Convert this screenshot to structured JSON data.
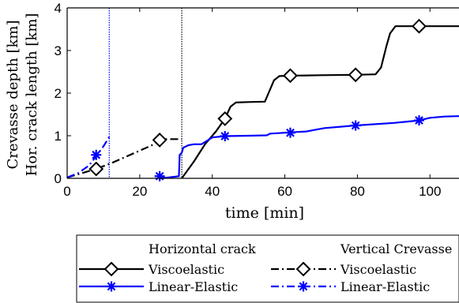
{
  "chart_data": {
    "type": "line",
    "xlabel": "time [min]",
    "ylabel_lines": [
      "Crevasse depth [km]",
      "Hor. crack length [km]"
    ],
    "xlim": [
      0,
      108
    ],
    "ylim": [
      0,
      4
    ],
    "xticks": [
      0,
      20,
      40,
      60,
      80,
      100
    ],
    "yticks": [
      0,
      1,
      2,
      3,
      4
    ],
    "grid": false,
    "vlines": [
      {
        "x": 11.6,
        "color": "#0000ff",
        "style": "dotted"
      },
      {
        "x": 31.6,
        "color": "#000000",
        "style": "dotted"
      }
    ],
    "series": [
      {
        "color": "#000000",
        "dash": "solid",
        "marker": "diamond",
        "points": [
          [
            31.6,
            0
          ],
          [
            35,
            0.4
          ],
          [
            38,
            0.8
          ],
          [
            41,
            1.1
          ],
          [
            43.5,
            1.4
          ],
          [
            45,
            1.68
          ],
          [
            46.5,
            1.78
          ],
          [
            50,
            1.79
          ],
          [
            54.5,
            1.8
          ],
          [
            55.5,
            2.0
          ],
          [
            57,
            2.3
          ],
          [
            58.5,
            2.4
          ],
          [
            62,
            2.41
          ],
          [
            70,
            2.42
          ],
          [
            79.5,
            2.43
          ],
          [
            85,
            2.44
          ],
          [
            86.5,
            2.6
          ],
          [
            88,
            3.1
          ],
          [
            89,
            3.4
          ],
          [
            90.5,
            3.57
          ],
          [
            97,
            3.57
          ],
          [
            108,
            3.57
          ]
        ],
        "markers": [
          [
            43.5,
            1.4
          ],
          [
            61.5,
            2.41
          ],
          [
            79.5,
            2.43
          ],
          [
            97,
            3.57
          ]
        ]
      },
      {
        "color": "#0000ff",
        "dash": "solid",
        "marker": "asterisk",
        "points": [
          [
            25.5,
            0
          ],
          [
            28,
            0.02
          ],
          [
            30.8,
            0.05
          ],
          [
            31,
            0.55
          ],
          [
            31.6,
            0.6
          ],
          [
            32,
            0.72
          ],
          [
            33.5,
            0.78
          ],
          [
            35,
            0.8
          ],
          [
            37,
            0.8
          ],
          [
            38.5,
            0.88
          ],
          [
            40,
            0.96
          ],
          [
            43.5,
            0.99
          ],
          [
            50,
            1.0
          ],
          [
            55,
            1.01
          ],
          [
            56,
            1.05
          ],
          [
            58,
            1.06
          ],
          [
            61.5,
            1.08
          ],
          [
            66,
            1.1
          ],
          [
            69,
            1.15
          ],
          [
            71,
            1.18
          ],
          [
            79.5,
            1.24
          ],
          [
            90,
            1.3
          ],
          [
            97,
            1.36
          ],
          [
            100,
            1.42
          ],
          [
            104,
            1.45
          ],
          [
            108,
            1.46
          ]
        ],
        "markers": [
          [
            25.5,
            0.05
          ],
          [
            43.5,
            0.99
          ],
          [
            61.5,
            1.07
          ],
          [
            79.5,
            1.24
          ],
          [
            97,
            1.36
          ]
        ]
      },
      {
        "color": "#000000",
        "dash": "dashdot",
        "marker": "diamond",
        "points": [
          [
            0,
            0.02
          ],
          [
            4,
            0.12
          ],
          [
            8,
            0.22
          ],
          [
            12,
            0.35
          ],
          [
            16,
            0.5
          ],
          [
            20,
            0.65
          ],
          [
            24,
            0.8
          ],
          [
            25.5,
            0.88
          ],
          [
            27,
            0.92
          ],
          [
            31.6,
            0.92
          ]
        ],
        "markers": [
          [
            8,
            0.22
          ],
          [
            25.5,
            0.9
          ]
        ]
      },
      {
        "color": "#0000ff",
        "dash": "dashdot",
        "marker": "asterisk",
        "points": [
          [
            0,
            0.02
          ],
          [
            3,
            0.12
          ],
          [
            6,
            0.3
          ],
          [
            8,
            0.52
          ],
          [
            10,
            0.75
          ],
          [
            11.6,
            0.97
          ]
        ],
        "markers": [
          [
            8,
            0.55
          ]
        ]
      }
    ]
  },
  "legend": {
    "heading_left": "Horizontal crack",
    "heading_right": "Vertical Crevasse",
    "entries": [
      {
        "label": "Viscoelastic",
        "color": "#000000",
        "dash": "solid",
        "marker": "diamond"
      },
      {
        "label": "Viscoelastic",
        "color": "#000000",
        "dash": "dashdot",
        "marker": "diamond"
      },
      {
        "label": "Linear-Elastic",
        "color": "#0000ff",
        "dash": "solid",
        "marker": "asterisk"
      },
      {
        "label": "Linear-Elastic",
        "color": "#0000ff",
        "dash": "dashdot",
        "marker": "asterisk"
      }
    ]
  }
}
